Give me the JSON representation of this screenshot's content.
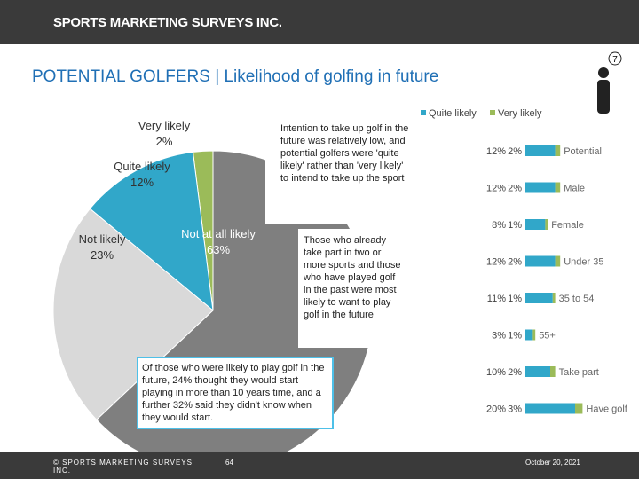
{
  "header": {
    "brand": "SPORTS MARKETING SURVEYS INC.",
    "title": "POTENTIAL GOLFERS | Likelihood of golfing in future",
    "page_badge": "7"
  },
  "callouts": [
    "Intention to take up golf in the future was relatively low, and potential golfers were 'quite likely' rather than 'very likely' to intend to take up the sport",
    "Those who already take part in two or more sports and those who have played golf in the past were most likely to want to play golf in the future",
    "Of those who were likely to play golf in the future, 24% thought they would start playing in more than 10 years time, and a further 32% said they didn't know when they would start."
  ],
  "footer": {
    "copyright": "© SPORTS MARKETING SURVEYS INC.",
    "page": "64",
    "date": "October 20, 2021"
  },
  "chart_data": [
    {
      "type": "pie",
      "categories": [
        "Very likely",
        "Quite likely",
        "Not likely",
        "Not at all likely"
      ],
      "values": [
        2,
        12,
        23,
        63
      ],
      "value_labels": [
        "2%",
        "12%",
        "23%",
        "63%"
      ],
      "colors": [
        "#9bbb59",
        "#31a7c9",
        "#d9d9d9",
        "#7f7f7f"
      ]
    },
    {
      "type": "bar",
      "orientation": "horizontal",
      "stacked": true,
      "categories": [
        "Potential",
        "Male",
        "Female",
        "Under 35",
        "35 to 54",
        "55+",
        "Take part",
        "Have golf"
      ],
      "series": [
        {
          "name": "Quite likely",
          "color": "#31a7c9",
          "values": [
            12,
            12,
            8,
            12,
            11,
            3,
            10,
            20
          ],
          "value_labels": [
            "12%",
            "12%",
            "8%",
            "12%",
            "11%",
            "3%",
            "10%",
            "20%"
          ]
        },
        {
          "name": "Very likely",
          "color": "#9bbb59",
          "values": [
            2,
            2,
            1,
            2,
            1,
            1,
            2,
            3
          ],
          "value_labels": [
            "2%",
            "2%",
            "1%",
            "2%",
            "1%",
            "1%",
            "2%",
            "3%"
          ]
        }
      ],
      "xlim": [
        0,
        25
      ],
      "legend": "top"
    }
  ]
}
